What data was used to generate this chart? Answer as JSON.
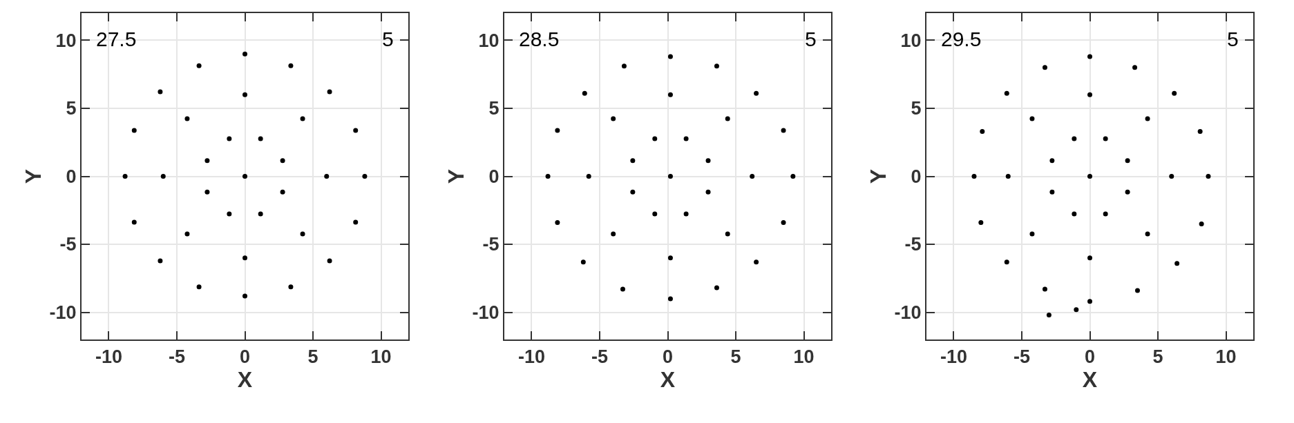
{
  "chart_data": [
    {
      "type": "scatter",
      "xlabel": "X",
      "ylabel": "Y",
      "annotations": [
        "27.5",
        "5"
      ],
      "color": "#000000",
      "marker": "circle",
      "grid": true,
      "xlim": [
        -12,
        12
      ],
      "ylim": [
        -12,
        12
      ],
      "xticks": [
        -10,
        -5,
        0,
        5,
        10
      ],
      "yticks": [
        -10,
        -5,
        0,
        5,
        10
      ],
      "x": [
        8.8,
        8.13,
        6.22,
        3.37,
        0,
        -3.37,
        -6.22,
        -8.13,
        -8.8,
        -8.13,
        -6.22,
        -3.37,
        0,
        3.37,
        6.22,
        8.13,
        6,
        4.24,
        0,
        -4.24,
        -6,
        -4.24,
        0,
        4.24,
        2.77,
        1.15,
        -1.15,
        -2.77,
        -2.77,
        -1.15,
        1.15,
        2.77,
        0
      ],
      "values": [
        0,
        3.37,
        6.22,
        8.13,
        9,
        8.13,
        6.22,
        3.37,
        0,
        -3.37,
        -6.22,
        -8.13,
        -8.8,
        -8.13,
        -6.22,
        -3.37,
        0,
        4.24,
        6,
        4.24,
        0,
        -4.24,
        -6,
        -4.24,
        1.15,
        2.77,
        2.77,
        1.15,
        -1.15,
        -2.77,
        -2.77,
        -1.15,
        0
      ]
    },
    {
      "type": "scatter",
      "xlabel": "X",
      "ylabel": "Y",
      "annotations": [
        "28.5",
        "5"
      ],
      "color": "#000000",
      "marker": "circle",
      "grid": true,
      "xlim": [
        -12,
        12
      ],
      "ylim": [
        -12,
        12
      ],
      "xticks": [
        -10,
        -5,
        0,
        5,
        10
      ],
      "yticks": [
        -10,
        -5,
        0,
        5,
        10
      ],
      "x": [
        9.2,
        8.5,
        6.5,
        3.6,
        0.2,
        -3.2,
        -6.1,
        -8.1,
        -8.8,
        -8.1,
        -6.2,
        -3.3,
        0.2,
        3.6,
        6.5,
        8.5,
        6.2,
        4.4,
        0.2,
        -4.0,
        -5.8,
        -4.0,
        0.2,
        4.4,
        2.97,
        1.35,
        -0.95,
        -2.57,
        -2.57,
        -0.95,
        1.35,
        2.97,
        0.2
      ],
      "values": [
        0,
        3.37,
        6.1,
        8.1,
        8.8,
        8.1,
        6.1,
        3.37,
        0,
        -3.4,
        -6.3,
        -8.3,
        -9,
        -8.2,
        -6.3,
        -3.4,
        0,
        4.24,
        6,
        4.24,
        0,
        -4.24,
        -6,
        -4.24,
        1.15,
        2.77,
        2.77,
        1.15,
        -1.15,
        -2.77,
        -2.77,
        -1.15,
        0
      ]
    },
    {
      "type": "scatter",
      "xlabel": "X",
      "ylabel": "Y",
      "annotations": [
        "29.5",
        "5"
      ],
      "color": "#000000",
      "marker": "circle",
      "grid": true,
      "xlim": [
        -12,
        12
      ],
      "ylim": [
        -12,
        12
      ],
      "xticks": [
        -10,
        -5,
        0,
        5,
        10
      ],
      "yticks": [
        -10,
        -5,
        0,
        5,
        10
      ],
      "x": [
        8.7,
        8.1,
        6.2,
        3.3,
        0,
        -3.3,
        -6.1,
        -7.9,
        -8.5,
        -8.0,
        -6.1,
        -3.3,
        0,
        3.5,
        6.4,
        8.2,
        6,
        4.24,
        0,
        -4.24,
        -6,
        -4.24,
        0,
        4.24,
        2.77,
        1.15,
        -1.15,
        -2.77,
        -2.77,
        -1.15,
        1.15,
        2.77,
        0,
        -3,
        -1
      ],
      "values": [
        0,
        3.3,
        6.1,
        8.0,
        8.8,
        8.0,
        6.1,
        3.3,
        0,
        -3.4,
        -6.3,
        -8.3,
        -9.2,
        -8.4,
        -6.4,
        -3.5,
        0,
        4.24,
        6,
        4.24,
        0,
        -4.24,
        -6,
        -4.24,
        1.15,
        2.77,
        2.77,
        1.15,
        -1.15,
        -2.77,
        -2.77,
        -1.15,
        0,
        -10.2,
        -9.8
      ]
    }
  ]
}
